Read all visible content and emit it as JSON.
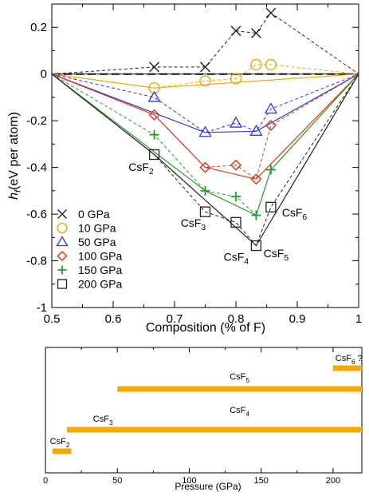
{
  "chart_data": [
    {
      "type": "line",
      "title": "",
      "xlabel": "Composition (% of F)",
      "ylabel_main": "h",
      "ylabel_sub": "f",
      "ylabel_rest": "(eV per atom)",
      "xlim": [
        0.5,
        1.0
      ],
      "ylim": [
        -1.0,
        0.3
      ],
      "xticks": [
        0.5,
        0.6,
        0.7,
        0.8,
        0.9,
        1.0
      ],
      "xtick_labels": [
        "0.5",
        "0.6",
        "0.7",
        "0.8",
        "0.9",
        "1"
      ],
      "yticks": [
        -1.0,
        -0.8,
        -0.6,
        -0.4,
        -0.2,
        0.0,
        0.2
      ],
      "ytick_labels": [
        "-1",
        "-0.8",
        "-0.6",
        "-0.4",
        "-0.2",
        "0",
        "0.2"
      ],
      "grid": false,
      "legend_position": "bottom-left",
      "zero_line": true,
      "series": [
        {
          "name": "0 GPa",
          "color": "#222222",
          "marker": "x",
          "points": [
            [
              0.667,
              0.03
            ],
            [
              0.75,
              0.03
            ],
            [
              0.8,
              0.185
            ],
            [
              0.833,
              0.175
            ],
            [
              0.857,
              0.262
            ]
          ],
          "hull": [
            [
              0.5,
              0.0
            ],
            [
              1.0,
              0.0
            ]
          ],
          "dashed": [
            [
              0.5,
              0.0
            ],
            [
              0.667,
              0.03
            ],
            [
              0.75,
              0.03
            ],
            [
              0.8,
              0.185
            ],
            [
              0.833,
              0.175
            ],
            [
              0.857,
              0.262
            ],
            [
              1.0,
              0.0
            ]
          ]
        },
        {
          "name": "10 GPa",
          "color": "#f0a800",
          "marker": "circle",
          "points": [
            [
              0.667,
              -0.06
            ],
            [
              0.75,
              -0.03
            ],
            [
              0.8,
              -0.02
            ],
            [
              0.833,
              0.04
            ],
            [
              0.857,
              0.04
            ]
          ],
          "hull": [
            [
              0.5,
              0.0
            ],
            [
              0.667,
              -0.06
            ],
            [
              1.0,
              0.0
            ]
          ],
          "dashed": [
            [
              0.5,
              0.0
            ],
            [
              0.667,
              -0.06
            ],
            [
              0.75,
              -0.03
            ],
            [
              0.8,
              -0.02
            ],
            [
              0.833,
              0.04
            ],
            [
              0.857,
              0.04
            ],
            [
              1.0,
              0.0
            ]
          ]
        },
        {
          "name": "50 GPa",
          "color": "#3333dd",
          "marker": "triangle",
          "points": [
            [
              0.667,
              -0.1
            ],
            [
              0.75,
              -0.25
            ],
            [
              0.8,
              -0.21
            ],
            [
              0.833,
              -0.245
            ],
            [
              0.857,
              -0.15
            ]
          ],
          "hull": [
            [
              0.5,
              0.0
            ],
            [
              0.75,
              -0.25
            ],
            [
              0.833,
              -0.245
            ],
            [
              1.0,
              0.0
            ]
          ],
          "dashed": [
            [
              0.5,
              0.0
            ],
            [
              0.667,
              -0.1
            ],
            [
              0.75,
              -0.25
            ],
            [
              0.8,
              -0.21
            ],
            [
              0.833,
              -0.245
            ],
            [
              0.857,
              -0.15
            ],
            [
              1.0,
              0.0
            ]
          ]
        },
        {
          "name": "100 GPa",
          "color": "#e03a1e",
          "marker": "diamond",
          "points": [
            [
              0.667,
              -0.175
            ],
            [
              0.75,
              -0.4
            ],
            [
              0.8,
              -0.39
            ],
            [
              0.833,
              -0.45
            ],
            [
              0.857,
              -0.22
            ]
          ],
          "hull": [
            [
              0.5,
              0.0
            ],
            [
              0.667,
              -0.175
            ],
            [
              0.75,
              -0.4
            ],
            [
              0.833,
              -0.45
            ],
            [
              1.0,
              0.0
            ]
          ],
          "dashed": [
            [
              0.5,
              0.0
            ],
            [
              0.667,
              -0.175
            ],
            [
              0.75,
              -0.4
            ],
            [
              0.8,
              -0.39
            ],
            [
              0.833,
              -0.45
            ],
            [
              0.857,
              -0.22
            ],
            [
              1.0,
              0.0
            ]
          ]
        },
        {
          "name": "150 GPa",
          "color": "#2a9a2a",
          "marker": "plus",
          "points": [
            [
              0.667,
              -0.26
            ],
            [
              0.75,
              -0.5
            ],
            [
              0.8,
              -0.525
            ],
            [
              0.833,
              -0.605
            ],
            [
              0.857,
              -0.41
            ]
          ],
          "hull": [
            [
              0.5,
              0.0
            ],
            [
              0.75,
              -0.5
            ],
            [
              0.833,
              -0.605
            ],
            [
              0.857,
              -0.41
            ],
            [
              1.0,
              0.0
            ]
          ],
          "dashed": [
            [
              0.5,
              0.0
            ],
            [
              0.667,
              -0.26
            ],
            [
              0.75,
              -0.5
            ],
            [
              0.8,
              -0.525
            ],
            [
              0.833,
              -0.605
            ],
            [
              0.857,
              -0.41
            ],
            [
              1.0,
              0.0
            ]
          ]
        },
        {
          "name": "200 GPa",
          "color": "#222222",
          "marker": "square",
          "points": [
            [
              0.667,
              -0.345
            ],
            [
              0.75,
              -0.59
            ],
            [
              0.8,
              -0.635
            ],
            [
              0.833,
              -0.735
            ],
            [
              0.857,
              -0.57
            ]
          ],
          "hull": [
            [
              0.5,
              0.0
            ],
            [
              0.667,
              -0.345
            ],
            [
              0.833,
              -0.735
            ],
            [
              1.0,
              0.0
            ]
          ],
          "dashed": [
            [
              0.5,
              0.0
            ],
            [
              0.667,
              -0.345
            ],
            [
              0.75,
              -0.59
            ],
            [
              0.8,
              -0.635
            ],
            [
              0.833,
              -0.735
            ],
            [
              0.857,
              -0.57
            ],
            [
              1.0,
              0.0
            ]
          ]
        }
      ],
      "annotations": [
        {
          "base": "CsF",
          "sub": "2",
          "x": 0.625,
          "y": -0.415
        },
        {
          "base": "CsF",
          "sub": "3",
          "x": 0.71,
          "y": -0.655
        },
        {
          "base": "CsF",
          "sub": "4",
          "x": 0.78,
          "y": -0.8
        },
        {
          "base": "CsF",
          "sub": "5",
          "x": 0.845,
          "y": -0.785
        },
        {
          "base": "CsF",
          "sub": "6",
          "x": 0.875,
          "y": -0.61
        }
      ]
    },
    {
      "type": "bar",
      "orientation": "horizontal",
      "title": "",
      "xlabel": "Pressure (GPa)",
      "xlim": [
        0,
        220
      ],
      "xticks": [
        0,
        50,
        100,
        150,
        200
      ],
      "xtick_labels": [
        "0",
        "50",
        "100",
        "150",
        "200"
      ],
      "color": "#f5a800",
      "bars": [
        {
          "base": "CsF",
          "sub": "2",
          "suffix": "",
          "start": 5,
          "end": 18
        },
        {
          "base": "CsF",
          "sub": "3",
          "suffix": "",
          "start": 15,
          "end": 220
        },
        {
          "base": "CsF",
          "sub": "4",
          "suffix": "",
          "start": 15,
          "end": 220
        },
        {
          "base": "CsF",
          "sub": "5",
          "suffix": "",
          "start": 50,
          "end": 220
        },
        {
          "base": "CsF",
          "sub": "6",
          "suffix": " ?",
          "start": 200,
          "end": 220
        }
      ]
    }
  ]
}
